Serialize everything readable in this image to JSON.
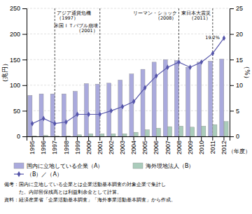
{
  "chart_data": {
    "type": "bar",
    "categories": [
      "1995",
      "1996",
      "1997",
      "1998",
      "1999",
      "2000",
      "2001",
      "2002",
      "2003",
      "2004",
      "2005",
      "2006",
      "2007",
      "2008",
      "2009",
      "2010",
      "2011",
      "2012"
    ],
    "series": [
      {
        "name": "国内に立地している企業（A）",
        "type": "bar",
        "color": "#aaaadd",
        "values": [
          80,
          83,
          83,
          83,
          88,
          103,
          102,
          104,
          110,
          122,
          131,
          145,
          150,
          148,
          135,
          145,
          147,
          151
        ]
      },
      {
        "name": "海外現地法人（B）",
        "type": "bar",
        "color": "#aaccbb",
        "values": [
          1,
          2,
          1,
          1,
          3,
          5,
          5,
          5,
          5,
          8,
          13,
          16,
          19,
          20,
          18,
          20,
          23,
          29
        ]
      },
      {
        "name": "（B）／（A）",
        "type": "line",
        "axis": "y2",
        "color": "#5555aa",
        "marker": "diamond",
        "values": [
          2.5,
          3.5,
          2.5,
          2.8,
          4.3,
          4.3,
          4.3,
          5.0,
          5.8,
          6.8,
          9.5,
          11.8,
          13.5,
          14.5,
          13.5,
          14.5,
          16.2,
          19.2
        ]
      }
    ],
    "xlabel": "（年度）",
    "ylabel": "（兆円）",
    "y2label": "（%）",
    "ylim": [
      0,
      250
    ],
    "yticks": [
      0,
      50,
      100,
      150,
      200,
      250
    ],
    "y2lim": [
      0,
      25
    ],
    "y2ticks": [
      0,
      5,
      10,
      15,
      20,
      25
    ],
    "grid": true,
    "legend": "bottom",
    "annotations": [
      {
        "text": "19.2%",
        "x": "2012"
      },
      {
        "text": "アジア通貨危機\n（1997）",
        "x": "1997",
        "line_style": "dashed"
      },
      {
        "text": "米国ＩＴバブル崩壊\n（2001）",
        "x": "2001",
        "line_style": "dashed"
      },
      {
        "text": "リーマン・ショック\n（2008）",
        "x": "2008",
        "line_style": "dashed"
      },
      {
        "text": "東日本大震災\n（2011）",
        "x": "2011",
        "line_style": "dashed"
      }
    ],
    "notes": [
      "備考：国内に立地している企業とは企業活動基本調査の対象企業で集計し",
      "　　　た。内部留保残高とは利益剰余金として計算。",
      "資料：経済産業省「企業活動基本調査」「海外事業活動基本調査」から作成。"
    ]
  }
}
